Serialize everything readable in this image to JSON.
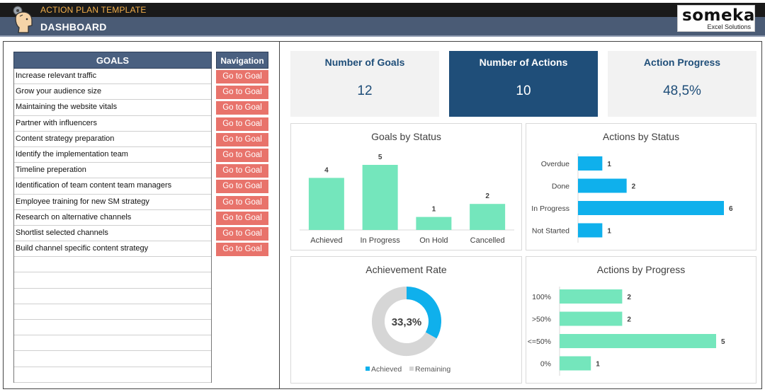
{
  "header": {
    "app_title": "ACTION PLAN TEMPLATE",
    "page_title": "DASHBOARD",
    "brand_name": "someka",
    "brand_sub": "Excel Solutions"
  },
  "goals": {
    "header": "GOALS",
    "items": [
      "Increase relevant traffic",
      "Grow your audience size",
      "Maintaining the website vitals",
      "Partner with influencers",
      "Content strategy preparation",
      "Identify the implementation team",
      "Timeline preperation",
      "Identification of team content team managers",
      "Employee training for new SM strategy",
      "Research on alternative channels",
      "Shortlist selected channels",
      "Build channel specific content strategy",
      "",
      "",
      "",
      "",
      "",
      "",
      "",
      ""
    ]
  },
  "navigation": {
    "header": "Navigation",
    "button_label": "Go to Goal",
    "count": 12
  },
  "kpis": {
    "goals": {
      "title": "Number of Goals",
      "value": "12"
    },
    "actions": {
      "title": "Number of Actions",
      "value": "10"
    },
    "progress": {
      "title": "Action Progress",
      "value": "48,5%"
    }
  },
  "colors": {
    "mint": "#74e6bc",
    "blue": "#0fb0ec",
    "gray": "#d6d6d6",
    "navy": "#1f4e79",
    "button": "#e8736b"
  },
  "chart_data": [
    {
      "type": "bar",
      "title": "Goals by Status",
      "categories": [
        "Achieved",
        "In Progress",
        "On Hold",
        "Cancelled"
      ],
      "values": [
        4,
        5,
        1,
        2
      ],
      "ylim": [
        0,
        5
      ]
    },
    {
      "type": "bar",
      "orientation": "horizontal",
      "title": "Actions by Status",
      "categories": [
        "Overdue",
        "Done",
        "In Progress",
        "Not Started"
      ],
      "values": [
        1,
        2,
        6,
        1
      ],
      "xlim": [
        0,
        6
      ]
    },
    {
      "type": "pie",
      "variant": "donut",
      "title": "Achievement Rate",
      "center_label": "33,3%",
      "labels": [
        "Achieved",
        "Remaining"
      ],
      "values": [
        33.3,
        66.7
      ],
      "legend": "bottom"
    },
    {
      "type": "bar",
      "orientation": "horizontal",
      "title": "Actions by Progress",
      "categories": [
        "100%",
        ">50%",
        "<=50%",
        "0%"
      ],
      "values": [
        2,
        2,
        5,
        1
      ],
      "xlim": [
        0,
        5
      ]
    }
  ]
}
